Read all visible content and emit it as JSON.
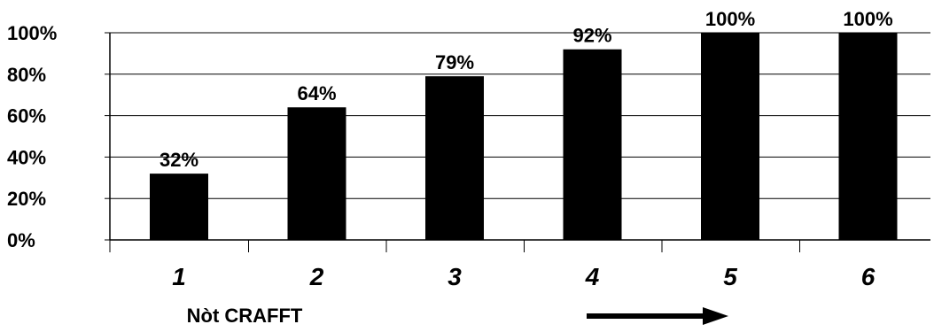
{
  "chart_data": {
    "type": "bar",
    "categories": [
      "1",
      "2",
      "3",
      "4",
      "5",
      "6"
    ],
    "values": [
      32,
      64,
      79,
      92,
      100,
      100
    ],
    "data_labels": [
      "32%",
      "64%",
      "79%",
      "92%",
      "100%",
      "100%"
    ],
    "title": "",
    "xlabel": "Nòt CRAFFT",
    "ylabel": "",
    "ylim": [
      0,
      100
    ],
    "yticks": [
      0,
      20,
      40,
      60,
      80,
      100
    ],
    "ytick_labels": [
      "0%",
      "20%",
      "40%",
      "60%",
      "80%",
      "100%"
    ],
    "grid": "horizontal",
    "legend": "none",
    "bar_color": "#000000",
    "arrow": "right-arrow-icon"
  }
}
